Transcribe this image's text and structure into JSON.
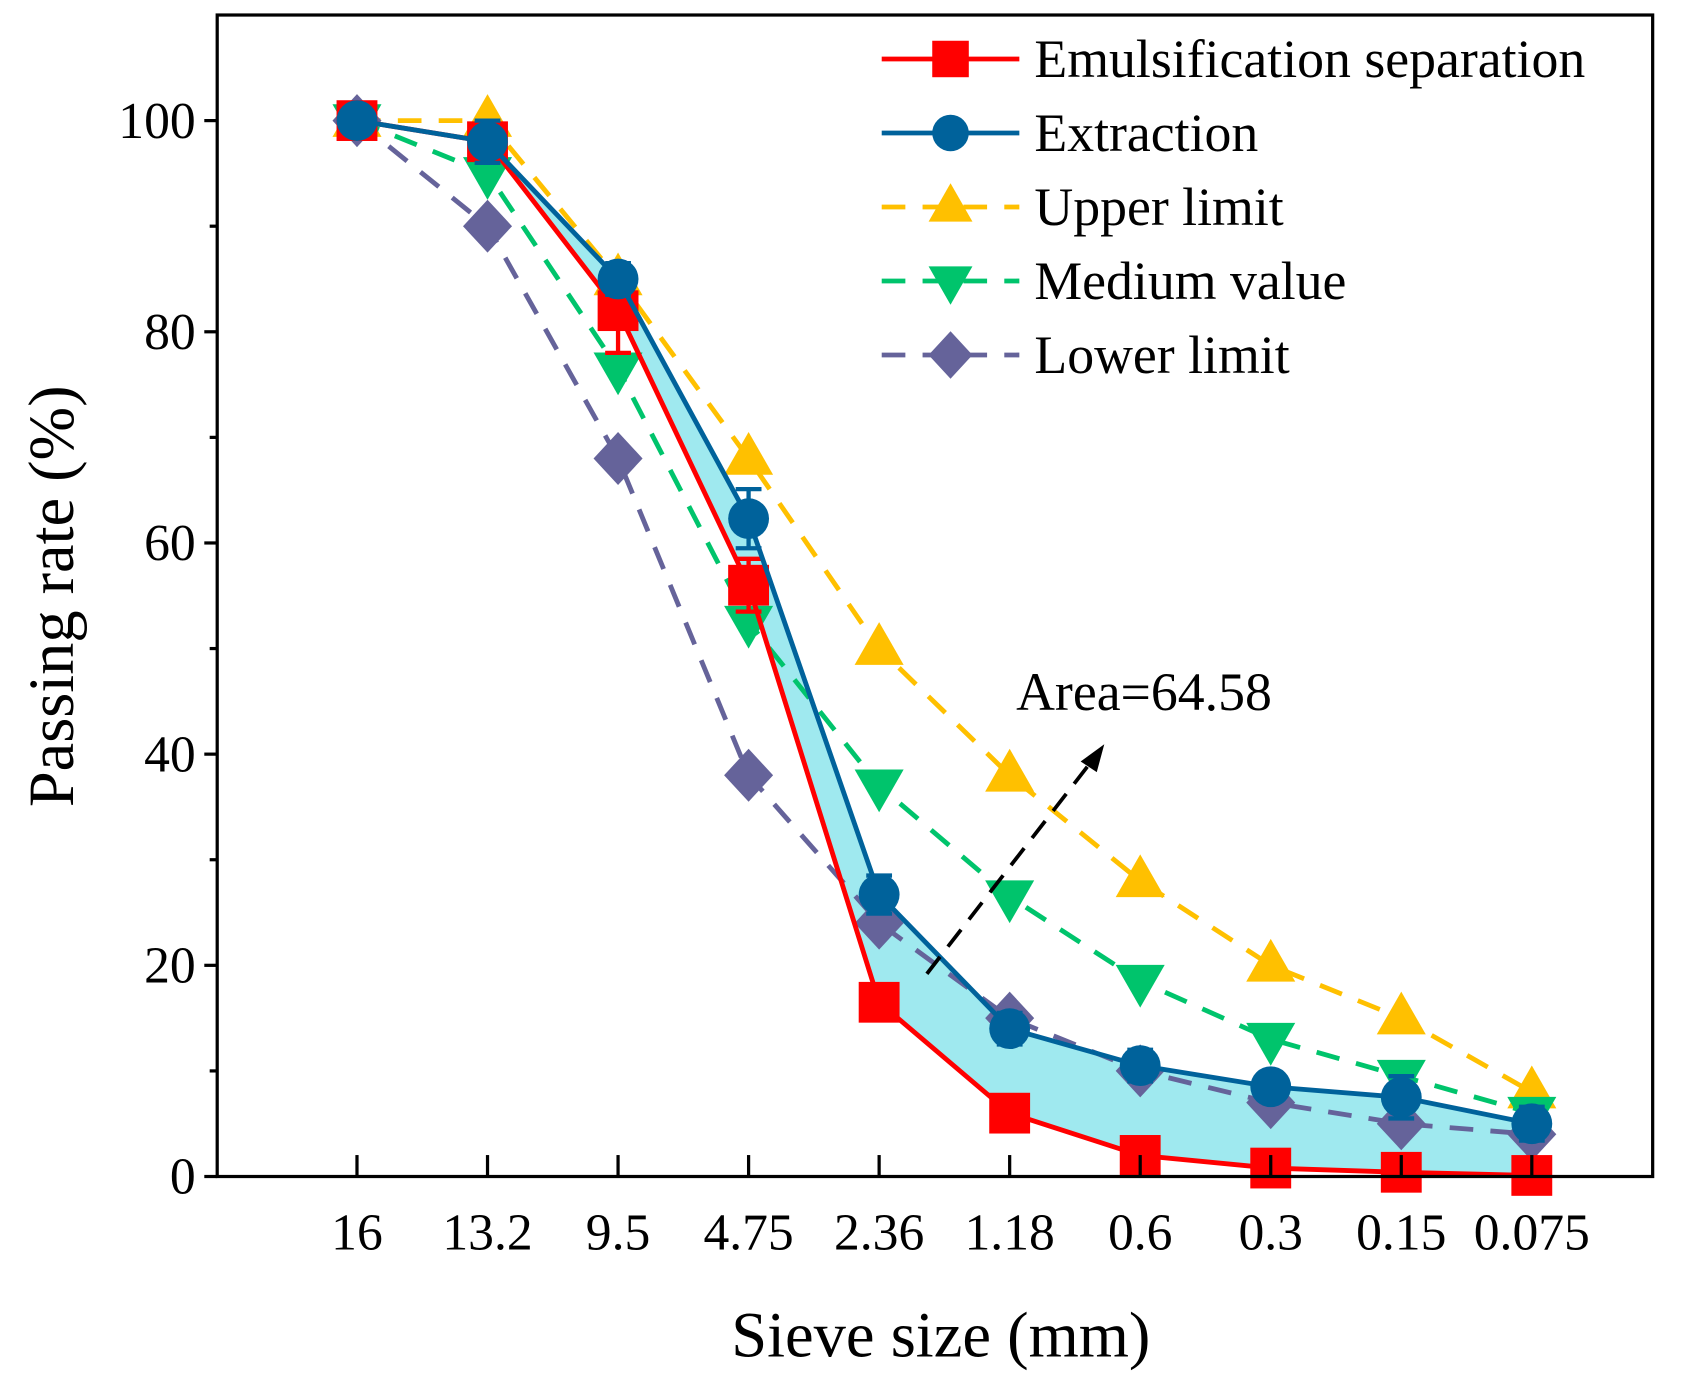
{
  "chart_data": {
    "type": "line",
    "title": "",
    "xlabel": "Sieve size (mm)",
    "ylabel": "Passing rate (%)",
    "categories": [
      "16",
      "13.2",
      "9.5",
      "4.75",
      "2.36",
      "1.18",
      "0.6",
      "0.3",
      "0.15",
      "0.075"
    ],
    "ylim": [
      0,
      110
    ],
    "yticks": [
      0,
      20,
      40,
      60,
      80,
      100
    ],
    "legend_position": "top-right",
    "series": [
      {
        "name": "Emulsification separation",
        "color": "#ff0000",
        "marker": "square",
        "dash": false,
        "values": [
          100,
          98,
          82,
          56,
          16.5,
          6,
          2,
          0.8,
          0.4,
          0.1
        ],
        "errors": [
          0.8,
          0.8,
          4,
          2.5,
          0.8,
          0.6,
          0.5,
          0.3,
          0.2,
          0.1
        ]
      },
      {
        "name": "Extraction",
        "color": "#00629b",
        "marker": "circle",
        "dash": false,
        "values": [
          100,
          98,
          85,
          62.3,
          26.7,
          14,
          10.5,
          8.5,
          7.5,
          5
        ],
        "errors": [
          0.5,
          2,
          1.5,
          2.8,
          1.8,
          1.5,
          1.5,
          1.3,
          2,
          1.6
        ]
      },
      {
        "name": "Upper limit",
        "color": "#ffc000",
        "marker": "triangle-up",
        "dash": true,
        "values": [
          100,
          100,
          85,
          68,
          50,
          38,
          28,
          20,
          15,
          8
        ]
      },
      {
        "name": "Medium value",
        "color": "#00c46c",
        "marker": "triangle-down",
        "dash": true,
        "values": [
          100,
          95,
          76.5,
          52.5,
          37,
          26.5,
          18.5,
          13,
          9.5,
          6
        ]
      },
      {
        "name": "Lower limit",
        "color": "#65639a",
        "marker": "diamond",
        "dash": true,
        "values": [
          100,
          90,
          68,
          38,
          24,
          15,
          10,
          7,
          5,
          4
        ]
      }
    ],
    "area_fill": {
      "between": [
        "Emulsification separation",
        "Extraction"
      ],
      "color": "#8ee5ec"
    },
    "annotation": "Area=64.58"
  }
}
